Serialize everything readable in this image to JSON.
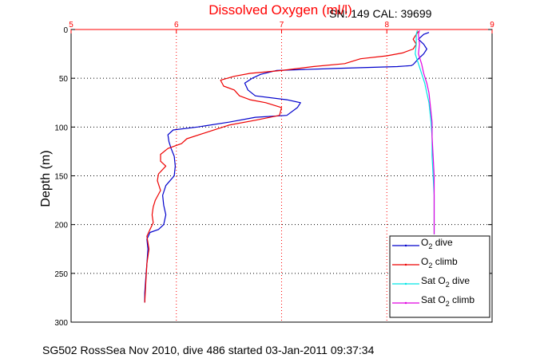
{
  "chart_data": {
    "type": "line",
    "title": "Dissolved Oxygen (ml/l)",
    "serial_label": "SN: 149  CAL: 39699",
    "ylabel": "Depth (m)",
    "xlabel": "",
    "footer": "SG502 RossSea Nov 2010, dive 486 started 03-Jan-2011 09:37:34",
    "xlim": [
      5,
      9
    ],
    "ylim": [
      0,
      300
    ],
    "x_ticks": [
      "5",
      "6",
      "7",
      "8",
      "9"
    ],
    "y_ticks": [
      "0",
      "50",
      "100",
      "150",
      "200",
      "250",
      "300"
    ],
    "grid": true,
    "legend_position": "bottom-right",
    "colors": {
      "title": "#ff0000",
      "x_axis": "#ff0000",
      "grid_red": "#ff0000",
      "grid_black": "#000000"
    },
    "series": [
      {
        "name": "O2 dive",
        "legend_main": "O",
        "legend_sub": "2",
        "legend_suffix": " dive",
        "color": "#0000cc",
        "points": [
          [
            5.7,
            280
          ],
          [
            5.7,
            270
          ],
          [
            5.71,
            255
          ],
          [
            5.72,
            240
          ],
          [
            5.73,
            225
          ],
          [
            5.72,
            215
          ],
          [
            5.75,
            208
          ],
          [
            5.83,
            205
          ],
          [
            5.88,
            200
          ],
          [
            5.9,
            190
          ],
          [
            5.88,
            180
          ],
          [
            5.87,
            170
          ],
          [
            5.9,
            160
          ],
          [
            5.98,
            150
          ],
          [
            5.99,
            140
          ],
          [
            5.98,
            130
          ],
          [
            5.95,
            122
          ],
          [
            5.93,
            115
          ],
          [
            5.92,
            108
          ],
          [
            5.97,
            103
          ],
          [
            6.2,
            100
          ],
          [
            6.5,
            95
          ],
          [
            6.75,
            90
          ],
          [
            7.05,
            88
          ],
          [
            7.15,
            80
          ],
          [
            7.18,
            75
          ],
          [
            7.05,
            72
          ],
          [
            6.75,
            68
          ],
          [
            6.68,
            62
          ],
          [
            6.65,
            55
          ],
          [
            6.72,
            50
          ],
          [
            6.8,
            46
          ],
          [
            6.95,
            42
          ],
          [
            7.5,
            40
          ],
          [
            8.1,
            38
          ],
          [
            8.23,
            37
          ],
          [
            8.25,
            36
          ],
          [
            8.3,
            30
          ],
          [
            8.35,
            25
          ],
          [
            8.38,
            20
          ],
          [
            8.35,
            15
          ],
          [
            8.3,
            10
          ],
          [
            8.35,
            5
          ],
          [
            8.4,
            3
          ]
        ]
      },
      {
        "name": "O2 climb",
        "legend_main": "O",
        "legend_sub": "2",
        "legend_suffix": " climb",
        "color": "#ee0000",
        "points": [
          [
            5.7,
            280
          ],
          [
            5.71,
            260
          ],
          [
            5.72,
            240
          ],
          [
            5.74,
            225
          ],
          [
            5.72,
            212
          ],
          [
            5.75,
            205
          ],
          [
            5.78,
            198
          ],
          [
            5.77,
            190
          ],
          [
            5.78,
            182
          ],
          [
            5.8,
            175
          ],
          [
            5.85,
            165
          ],
          [
            5.82,
            155
          ],
          [
            5.83,
            148
          ],
          [
            5.9,
            140
          ],
          [
            5.85,
            135
          ],
          [
            5.85,
            128
          ],
          [
            5.92,
            122
          ],
          [
            6.05,
            117
          ],
          [
            6.1,
            112
          ],
          [
            6.3,
            105
          ],
          [
            6.5,
            98
          ],
          [
            6.75,
            93
          ],
          [
            6.98,
            88
          ],
          [
            7.0,
            80
          ],
          [
            6.85,
            75
          ],
          [
            6.7,
            72
          ],
          [
            6.6,
            68
          ],
          [
            6.55,
            62
          ],
          [
            6.45,
            58
          ],
          [
            6.42,
            52
          ],
          [
            6.55,
            48
          ],
          [
            6.7,
            45
          ],
          [
            7.0,
            42
          ],
          [
            7.3,
            38
          ],
          [
            7.6,
            35
          ],
          [
            7.75,
            30
          ],
          [
            8.0,
            27
          ],
          [
            8.15,
            24
          ],
          [
            8.25,
            20
          ],
          [
            8.28,
            15
          ],
          [
            8.25,
            10
          ],
          [
            8.28,
            5
          ],
          [
            8.3,
            2
          ]
        ]
      },
      {
        "name": "Sat O2 dive",
        "legend_main": "Sat O",
        "legend_sub": "2",
        "legend_suffix": " dive",
        "color": "#00e5e5",
        "points": [
          [
            8.45,
            210
          ],
          [
            8.45,
            190
          ],
          [
            8.45,
            170
          ],
          [
            8.44,
            150
          ],
          [
            8.43,
            130
          ],
          [
            8.43,
            110
          ],
          [
            8.42,
            95
          ],
          [
            8.41,
            85
          ],
          [
            8.4,
            75
          ],
          [
            8.38,
            65
          ],
          [
            8.36,
            55
          ],
          [
            8.33,
            45
          ],
          [
            8.3,
            35
          ],
          [
            8.27,
            25
          ],
          [
            8.28,
            15
          ],
          [
            8.28,
            5
          ],
          [
            8.29,
            1
          ]
        ]
      },
      {
        "name": "Sat O2 climb",
        "legend_main": "Sat O",
        "legend_sub": "2",
        "legend_suffix": " climb",
        "color": "#e000e0",
        "points": [
          [
            8.45,
            210
          ],
          [
            8.45,
            190
          ],
          [
            8.45,
            170
          ],
          [
            8.45,
            150
          ],
          [
            8.44,
            130
          ],
          [
            8.43,
            110
          ],
          [
            8.43,
            95
          ],
          [
            8.42,
            85
          ],
          [
            8.41,
            75
          ],
          [
            8.4,
            65
          ],
          [
            8.38,
            55
          ],
          [
            8.35,
            45
          ],
          [
            8.33,
            35
          ],
          [
            8.3,
            25
          ],
          [
            8.31,
            15
          ],
          [
            8.3,
            5
          ],
          [
            8.31,
            1
          ]
        ]
      }
    ]
  }
}
